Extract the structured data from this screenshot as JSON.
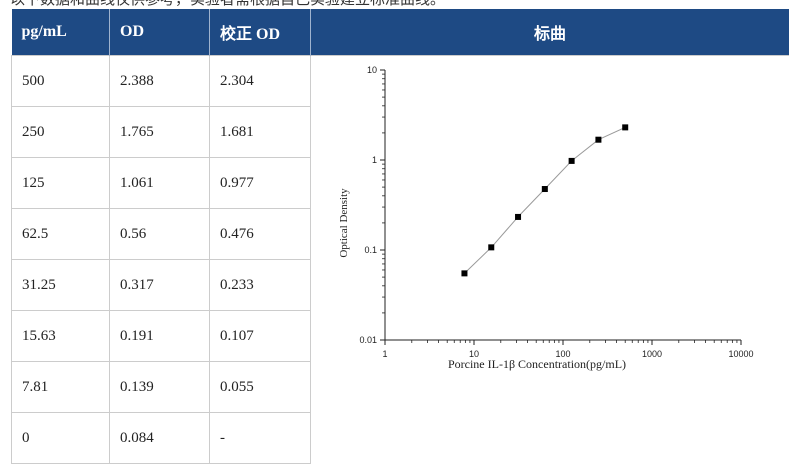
{
  "intro_text": "以下数据和曲线仅供参考，实验者需根据自己实验建立标准曲线。",
  "table": {
    "headers": {
      "conc": "pg/mL",
      "od": "OD",
      "corrected": "校正 OD",
      "curve": "标曲"
    },
    "rows": [
      {
        "conc": "500",
        "od": "2.388",
        "corrected": "2.304"
      },
      {
        "conc": "250",
        "od": "1.765",
        "corrected": "1.681"
      },
      {
        "conc": "125",
        "od": "1.061",
        "corrected": "0.977"
      },
      {
        "conc": "62.5",
        "od": "0.56",
        "corrected": "0.476"
      },
      {
        "conc": "31.25",
        "od": "0.317",
        "corrected": "0.233"
      },
      {
        "conc": "15.63",
        "od": "0.191",
        "corrected": "0.107"
      },
      {
        "conc": "7.81",
        "od": "0.139",
        "corrected": "0.055"
      },
      {
        "conc": "0",
        "od": "0.084",
        "corrected": "-"
      }
    ]
  },
  "colors": {
    "header_bg": "#1e4a84",
    "header_text": "#ffffff",
    "grid": "#cccccc"
  },
  "chart_data": {
    "type": "scatter",
    "xlabel": "Porcine IL-1β  Concentration(pg/mL)",
    "ylabel": "Optical Density",
    "x_scale": "log",
    "y_scale": "log",
    "xlim": [
      1,
      10000
    ],
    "ylim": [
      0.01,
      10
    ],
    "x_ticks": [
      "1",
      "10",
      "100",
      "1000",
      "10000"
    ],
    "y_ticks": [
      "0.01",
      "0.1",
      "1",
      "10"
    ],
    "grid": false,
    "series": [
      {
        "x": [
          7.81,
          15.63,
          31.25,
          62.5,
          125,
          250,
          500
        ],
        "y": [
          0.055,
          0.107,
          0.233,
          0.476,
          0.977,
          1.681,
          2.304
        ]
      }
    ]
  }
}
